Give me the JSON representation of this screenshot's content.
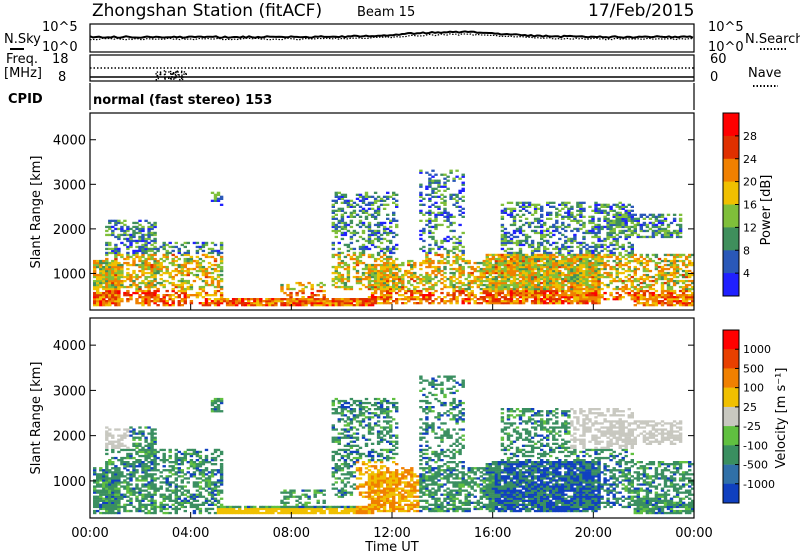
{
  "header": {
    "station": "Zhongshan Station (fitACF)",
    "beam": "Beam 15",
    "date": "17/Feb/2015"
  },
  "summary_panel": {
    "left_label": "N.Sky",
    "right_label": "N.Search",
    "left_ticks": [
      "10^5",
      "10^0"
    ],
    "right_ticks": [
      "10^5",
      "10^0"
    ]
  },
  "freq_panel": {
    "left_label_1": "Freq.",
    "left_label_2": "[MHz]",
    "right_label": "Nave",
    "left_ticks": [
      "18",
      "8"
    ],
    "right_ticks": [
      "60",
      "0"
    ]
  },
  "cpid_panel": {
    "label": "CPID",
    "text": "normal (fast stereo) 153"
  },
  "chart_data": [
    {
      "type": "heatmap",
      "parameter": "power",
      "ylabel": "Slant Range [km]",
      "yticks": [
        "4000",
        "3000",
        "2000",
        "1000"
      ],
      "ylim": [
        180,
        4600
      ],
      "xlim": [
        0,
        24
      ],
      "colorbar": {
        "label": "Power [dB]",
        "ticks": [
          "28",
          "24",
          "20",
          "16",
          "12",
          "8",
          "4"
        ],
        "colors": [
          "#2020ff",
          "#2a58b8",
          "#3f8f5c",
          "#7fbf3a",
          "#f0c000",
          "#f08000",
          "#e03000",
          "#ff0000"
        ]
      }
    },
    {
      "type": "heatmap",
      "parameter": "velocity",
      "ylabel": "Slant Range [km]",
      "yticks": [
        "4000",
        "3000",
        "2000",
        "1000"
      ],
      "ylim": [
        180,
        4600
      ],
      "xlim": [
        0,
        24
      ],
      "colorbar": {
        "label": "Velocity [m s⁻¹]",
        "ticks": [
          "1000",
          "500",
          "100",
          "25",
          "-25",
          "-100",
          "-500",
          "-1000"
        ],
        "colors": [
          "#1040c0",
          "#3070a8",
          "#3a8f60",
          "#60c040",
          "#c8c8c0",
          "#f0c000",
          "#f08000",
          "#e84000",
          "#ff0000"
        ]
      }
    }
  ],
  "xaxis": {
    "label": "Time UT",
    "ticks": [
      "00:00",
      "04:00",
      "08:00",
      "12:00",
      "16:00",
      "20:00",
      "00:00"
    ]
  }
}
